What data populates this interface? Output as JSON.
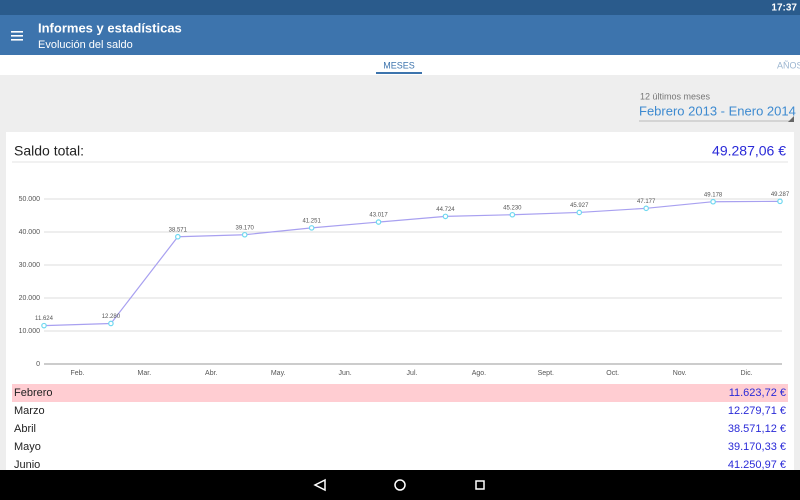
{
  "status_bar": {
    "time": "17:37"
  },
  "app_bar": {
    "title": "Informes y estadísticas",
    "subtitle": "Evolución del saldo"
  },
  "tabs": [
    "MESES",
    "AÑOS"
  ],
  "period": {
    "caption": "12 últimos meses",
    "value": "Febrero 2013 - Enero 2014"
  },
  "summary": {
    "label": "Saldo total:",
    "value": "49.287,06 €"
  },
  "chart_data": {
    "type": "line",
    "categories": [
      "Feb.",
      "Mar.",
      "Abr.",
      "May.",
      "Jun.",
      "Jul.",
      "Ago.",
      "Sept.",
      "Oct.",
      "Nov.",
      "Dic.",
      null
    ],
    "values": [
      11624,
      12280,
      38571,
      39170,
      41251,
      43017,
      44724,
      45230,
      45927,
      47177,
      49178,
      49287
    ],
    "value_labels": [
      "11.624",
      "12.280",
      "38.571",
      "39.170",
      "41.251",
      "43.017",
      "44.724",
      "45.230",
      "45.927",
      "47.177",
      "49.178",
      "49.287"
    ],
    "color": "#a8a0f0",
    "marker_color": "#6fd8f0",
    "ylim": [
      0,
      50000
    ],
    "yticks": [
      0,
      {
        "value": 10000,
        "label": "10.000"
      },
      {
        "value": 20000,
        "label": "20.000"
      },
      {
        "value": 30000,
        "label": "30.000"
      },
      {
        "value": 40000,
        "label": "40.000"
      },
      {
        "value": 50000,
        "label": "50.000"
      }
    ],
    "grid": true
  },
  "list": [
    {
      "name": "Febrero",
      "amount": "11.623,72 €"
    },
    {
      "name": "Marzo",
      "amount": "12.279,71 €"
    },
    {
      "name": "Abril",
      "amount": "38.571,12 €"
    },
    {
      "name": "Mayo",
      "amount": "39.170,33 €"
    },
    {
      "name": "Junio",
      "amount": "41.250,97 €"
    }
  ]
}
